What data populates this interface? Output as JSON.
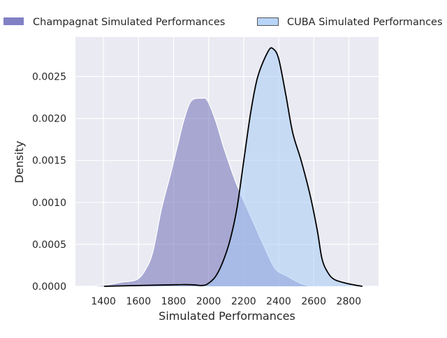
{
  "chart_data": {
    "type": "area",
    "subtype": "kde",
    "title": "",
    "xlabel": "Simulated Performances",
    "ylabel": "Density",
    "xlim": [
      1240,
      2970
    ],
    "ylim": [
      0,
      0.00297
    ],
    "xticks": [
      1400,
      1600,
      1800,
      2000,
      2200,
      2400,
      2600,
      2800
    ],
    "yticks": [
      0,
      0.0005,
      0.001,
      0.0015,
      0.002,
      0.0025
    ],
    "ytick_labels": [
      "0.0000",
      "0.0005",
      "0.0010",
      "0.0015",
      "0.0020",
      "0.0025"
    ],
    "grid": true,
    "legend_position": "top (outside)",
    "series": [
      {
        "name": "Champagnat Simulated Performances",
        "color": "#7070b8",
        "edge": "#ffffff",
        "legend_swatch": "#8080c4",
        "x": [
          1316,
          1424,
          1504,
          1591,
          1643,
          1683,
          1731,
          1782,
          1822,
          1862,
          1902,
          1962,
          1994,
          2042,
          2090,
          2161,
          2241,
          2320,
          2380,
          2440,
          2520,
          2580
        ],
        "y": [
          0,
          2e-05,
          5e-05,
          8e-05,
          0.00021,
          0.00042,
          0.00092,
          0.00133,
          0.00167,
          0.002,
          0.00221,
          0.00224,
          0.00221,
          0.00196,
          0.00163,
          0.00121,
          0.00083,
          0.00046,
          0.00021,
          0.00013,
          4e-05,
          0
        ]
      },
      {
        "name": "CUBA Simulated Performances",
        "color": "#a8ccf6",
        "edge": "#000000",
        "legend_swatch": "#b8d4f8",
        "x": [
          1404,
          1850,
          1962,
          2002,
          2042,
          2081,
          2121,
          2161,
          2201,
          2241,
          2281,
          2340,
          2368,
          2400,
          2440,
          2480,
          2528,
          2580,
          2620,
          2647,
          2679,
          2719,
          2799,
          2878
        ],
        "y": [
          0,
          2e-05,
          1e-05,
          4e-05,
          0.000125,
          0.00029,
          0.00054,
          0.00092,
          0.0015,
          0.00208,
          0.0025,
          0.0028,
          0.00283,
          0.00271,
          0.00229,
          0.00183,
          0.0015,
          0.00108,
          0.00067,
          0.00033,
          0.00017,
          8e-05,
          3e-05,
          0
        ]
      }
    ]
  }
}
